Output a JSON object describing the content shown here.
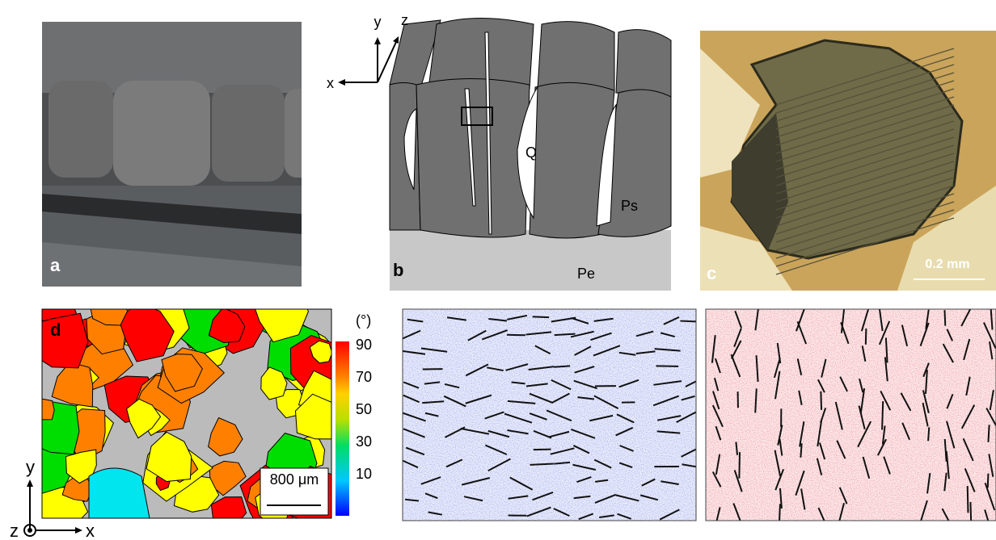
{
  "panels": {
    "a": {
      "label": "a"
    },
    "b": {
      "label": "b",
      "axes": {
        "x": "x",
        "y": "y",
        "z": "z"
      },
      "regions": {
        "q": "Q",
        "ps": "Ps",
        "pe": "Pe"
      }
    },
    "c": {
      "label": "c",
      "scale_bar": "0.2 mm"
    },
    "d": {
      "label": "d",
      "colorbar": {
        "unit": "(°)",
        "labels": [
          "90",
          "70",
          "50",
          "30",
          "10"
        ]
      },
      "scale_bar": "800 μm",
      "axes": {
        "y": "y",
        "z": "z",
        "x": "x"
      }
    }
  }
}
